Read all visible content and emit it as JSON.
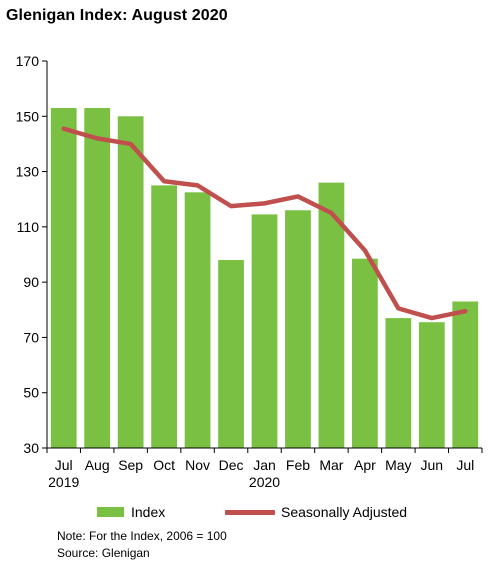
{
  "title": "Glenigan Index: August 2020",
  "chart_data": {
    "type": "bar",
    "categories": [
      "Jul",
      "Aug",
      "Sep",
      "Oct",
      "Nov",
      "Dec",
      "Jan",
      "Feb",
      "Mar",
      "Apr",
      "May",
      "Jun",
      "Jul"
    ],
    "year_labels": [
      "2019",
      "",
      "",
      "",
      "",
      "",
      "2020",
      "",
      "",
      "",
      "",
      "",
      ""
    ],
    "series": [
      {
        "name": "Index",
        "type": "bar",
        "color": "#7ac143",
        "values": [
          153,
          153,
          150,
          125,
          122.5,
          98,
          114.5,
          116,
          126,
          98.5,
          77,
          75.5,
          83
        ]
      },
      {
        "name": "Seasonally Adjusted",
        "type": "line",
        "color": "#c0504d",
        "values": [
          145.5,
          142,
          140,
          126.5,
          125,
          117.5,
          118.5,
          121,
          115,
          101.5,
          80.5,
          77,
          79.5
        ]
      }
    ],
    "ylim": [
      30,
      170
    ],
    "yticks": [
      30,
      50,
      70,
      90,
      110,
      130,
      150,
      170
    ],
    "xlabel": "",
    "ylabel": "",
    "legend_position": "bottom",
    "grid": false
  },
  "notes": {
    "line1": "Note: For the Index, 2006 = 100",
    "line2": "Source: Glenigan"
  }
}
